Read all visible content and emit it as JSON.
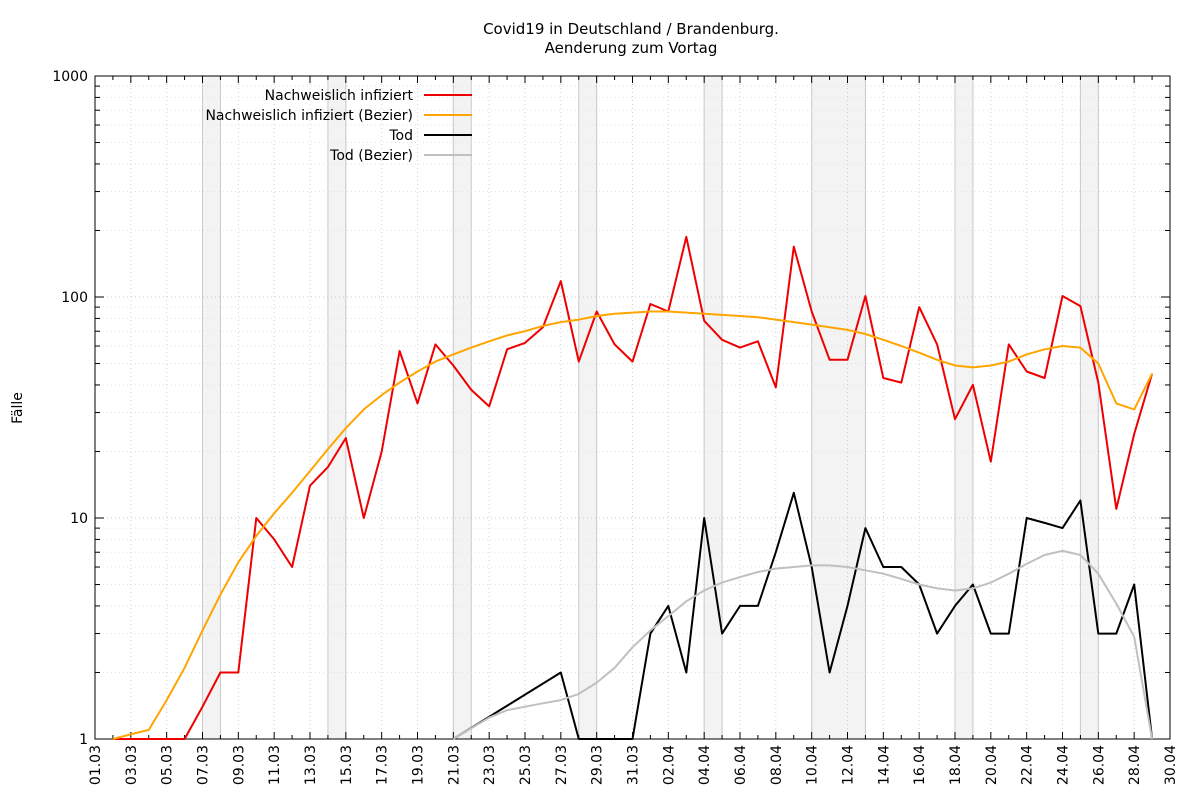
{
  "chart_data": {
    "type": "line",
    "title": "Covid19 in Deutschland / Brandenburg.",
    "subtitle": "Aenderung zum Vortag",
    "xlabel": "",
    "ylabel": "Fälle",
    "y_scale": "log",
    "ylim": [
      1,
      1000
    ],
    "y_ticks": [
      "1",
      "10",
      "100",
      "1000"
    ],
    "x_tick_labels": [
      "01.03",
      "03.03",
      "05.03",
      "07.03",
      "09.03",
      "11.03",
      "13.03",
      "15.03",
      "17.03",
      "19.03",
      "21.03",
      "23.03",
      "25.03",
      "27.03",
      "29.03",
      "31.03",
      "02.04",
      "04.04",
      "06.04",
      "08.04",
      "10.04",
      "12.04",
      "14.04",
      "16.04",
      "18.04",
      "20.04",
      "22.04",
      "24.04",
      "26.04",
      "28.04",
      "30.04"
    ],
    "grid": true,
    "legend_position": "top-left",
    "weekend_shading": [
      [
        "07.03",
        "08.03"
      ],
      [
        "14.03",
        "15.03"
      ],
      [
        "21.03",
        "22.03"
      ],
      [
        "28.03",
        "29.03"
      ],
      [
        "04.04",
        "05.04"
      ],
      [
        "10.04",
        "13.04"
      ],
      [
        "18.04",
        "19.04"
      ],
      [
        "25.04",
        "26.04"
      ]
    ],
    "series": [
      {
        "name": "Nachweislich infiziert",
        "color": "#ee0000",
        "x": [
          "02.03",
          "03.03",
          "04.03",
          "05.03",
          "06.03",
          "07.03",
          "08.03",
          "09.03",
          "10.03",
          "11.03",
          "12.03",
          "13.03",
          "14.03",
          "15.03",
          "16.03",
          "17.03",
          "18.03",
          "19.03",
          "20.03",
          "21.03",
          "22.03",
          "23.03",
          "24.03",
          "25.03",
          "26.03",
          "27.03",
          "28.03",
          "29.03",
          "30.03",
          "31.03",
          "01.04",
          "02.04",
          "03.04",
          "04.04",
          "05.04",
          "06.04",
          "07.04",
          "08.04",
          "09.04",
          "10.04",
          "11.04",
          "12.04",
          "13.04",
          "14.04",
          "15.04",
          "16.04",
          "17.04",
          "18.04",
          "19.04",
          "20.04",
          "21.04",
          "22.04",
          "23.04",
          "24.04",
          "25.04",
          "26.04",
          "27.04",
          "28.04",
          "29.04"
        ],
        "values": [
          1,
          1,
          1,
          1,
          1,
          1.4,
          2,
          2,
          10,
          8,
          6,
          14,
          17,
          23,
          10,
          20,
          57,
          33,
          61,
          49,
          38,
          32,
          58,
          62,
          73,
          118,
          51,
          86,
          61,
          51,
          93,
          86,
          187,
          78,
          64,
          59,
          63,
          39,
          169,
          86,
          52,
          52,
          101,
          43,
          41,
          90,
          61,
          28,
          40,
          18,
          61,
          46,
          43,
          101,
          91,
          41,
          11,
          24,
          45
        ]
      },
      {
        "name": "Nachweislich infiziert (Bezier)",
        "color": "#ffa500",
        "x": [
          "02.03",
          "03.03",
          "04.03",
          "05.03",
          "06.03",
          "07.03",
          "08.03",
          "09.03",
          "10.03",
          "11.03",
          "12.03",
          "13.03",
          "14.03",
          "15.03",
          "16.03",
          "17.03",
          "18.03",
          "19.03",
          "20.03",
          "21.03",
          "22.03",
          "23.03",
          "24.03",
          "25.03",
          "26.03",
          "27.03",
          "28.03",
          "29.03",
          "30.03",
          "31.03",
          "01.04",
          "02.04",
          "03.04",
          "04.04",
          "05.04",
          "06.04",
          "07.04",
          "08.04",
          "09.04",
          "10.04",
          "11.04",
          "12.04",
          "13.04",
          "14.04",
          "15.04",
          "16.04",
          "17.04",
          "18.04",
          "19.04",
          "20.04",
          "21.04",
          "22.04",
          "23.04",
          "24.04",
          "25.04",
          "26.04",
          "27.04",
          "28.04",
          "29.04"
        ],
        "values": [
          1,
          1.05,
          1.1,
          1.5,
          2.1,
          3.1,
          4.5,
          6.3,
          8.3,
          10.5,
          13,
          16.3,
          20.5,
          25.5,
          31,
          36,
          41,
          46,
          51,
          55,
          59,
          63,
          67,
          70,
          74,
          77,
          79,
          82,
          84,
          85,
          86,
          86,
          85,
          84,
          83,
          82,
          81,
          79,
          77,
          75,
          73,
          71,
          68,
          64,
          60,
          56,
          52,
          49,
          48,
          49,
          51,
          55,
          58,
          60,
          59,
          50,
          33,
          31,
          45
        ]
      },
      {
        "name": "Tod",
        "color": "#000000",
        "x": [
          "21.03",
          "27.03",
          "28.03",
          "29.03",
          "30.03",
          "31.03",
          "01.04",
          "02.04",
          "03.04",
          "04.04",
          "05.04",
          "06.04",
          "07.04",
          "08.04",
          "09.04",
          "10.04",
          "11.04",
          "12.04",
          "13.04",
          "14.04",
          "15.04",
          "16.04",
          "17.04",
          "18.04",
          "19.04",
          "20.04",
          "21.04",
          "22.04",
          "23.04",
          "24.04",
          "25.04",
          "26.04",
          "27.04",
          "28.04",
          "29.04"
        ],
        "values": [
          1,
          2,
          1,
          1,
          1,
          1,
          3,
          4,
          2,
          10,
          3,
          4,
          4,
          7,
          13,
          6,
          2,
          4,
          9,
          6,
          6,
          5,
          3,
          4,
          5,
          3,
          3,
          10,
          9.5,
          9,
          12,
          3,
          3,
          5,
          1
        ]
      },
      {
        "name": "Tod (Bezier)",
        "color": "#c0c0c0",
        "x": [
          "21.03",
          "22.03",
          "23.03",
          "24.03",
          "25.03",
          "26.03",
          "27.03",
          "28.03",
          "29.03",
          "30.03",
          "31.03",
          "01.04",
          "02.04",
          "03.04",
          "04.04",
          "05.04",
          "06.04",
          "07.04",
          "08.04",
          "09.04",
          "10.04",
          "11.04",
          "12.04",
          "13.04",
          "14.04",
          "15.04",
          "16.04",
          "17.04",
          "18.04",
          "19.04",
          "20.04",
          "21.04",
          "22.04",
          "23.04",
          "24.04",
          "25.04",
          "26.04",
          "27.04",
          "28.04",
          "29.04"
        ],
        "values": [
          1,
          1.12,
          1.25,
          1.35,
          1.4,
          1.45,
          1.5,
          1.6,
          1.8,
          2.1,
          2.6,
          3.1,
          3.6,
          4.2,
          4.7,
          5.1,
          5.4,
          5.7,
          5.9,
          6,
          6.1,
          6.1,
          6,
          5.8,
          5.6,
          5.3,
          5,
          4.8,
          4.7,
          4.8,
          5.1,
          5.6,
          6.2,
          6.8,
          7.1,
          6.8,
          5.6,
          4.1,
          2.9,
          1
        ]
      }
    ]
  }
}
